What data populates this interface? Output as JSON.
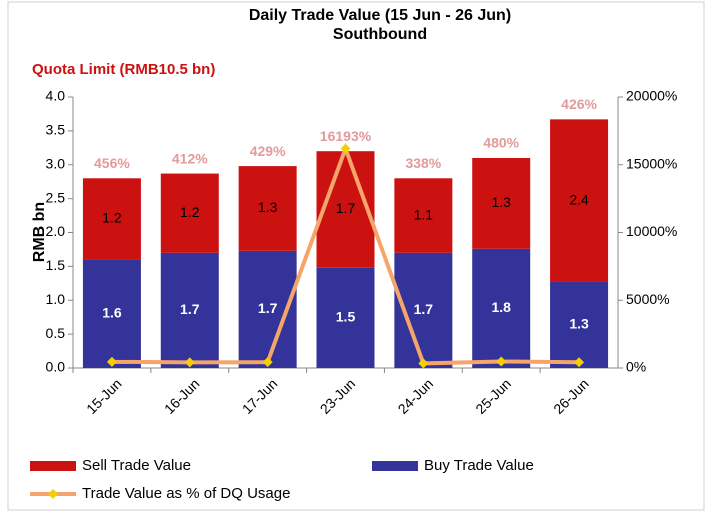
{
  "chart_data": {
    "type": "stacked-bar-line",
    "title": "Daily Trade Value (15 Jun - 26 Jun)",
    "subtitle": "Southbound",
    "annotation": "Quota Limit (RMB10.5 bn)",
    "y_label": "RMB bn",
    "categories": [
      "15-Jun",
      "16-Jun",
      "17-Jun",
      "23-Jun",
      "24-Jun",
      "25-Jun",
      "26-Jun"
    ],
    "series": [
      {
        "name": "Buy Trade Value",
        "color": "#333399",
        "values": [
          1.6,
          1.7,
          1.73,
          1.48,
          1.7,
          1.76,
          1.27
        ],
        "value_labels": [
          "1.6",
          "1.7",
          "1.7",
          "1.5",
          "1.7",
          "1.8",
          "1.3"
        ]
      },
      {
        "name": "Sell Trade Value",
        "color": "#cc1111",
        "values": [
          1.2,
          1.17,
          1.25,
          1.72,
          1.1,
          1.34,
          2.4
        ],
        "value_labels": [
          "1.2",
          "1.2",
          "1.3",
          "1.7",
          "1.1",
          "1.3",
          "2.4"
        ]
      },
      {
        "name": "Trade Value as % of DQ Usage",
        "color": "#f5a56a",
        "marker_color": "#f5d000",
        "axis": "y2",
        "values": [
          456,
          412,
          429,
          16193,
          338,
          480,
          426
        ],
        "value_labels": [
          "456%",
          "412%",
          "429%",
          "16193%",
          "338%",
          "480%",
          "426%"
        ]
      }
    ],
    "ylim": [
      0,
      4
    ],
    "yticks": [
      {
        "value": 0,
        "label": "0.0"
      },
      {
        "value": 0.5,
        "label": "0.5"
      },
      {
        "value": 1,
        "label": "1.0"
      },
      {
        "value": 1.5,
        "label": "1.5"
      },
      {
        "value": 2,
        "label": "2.0"
      },
      {
        "value": 2.5,
        "label": "2.5"
      },
      {
        "value": 3,
        "label": "3.0"
      },
      {
        "value": 3.5,
        "label": "3.5"
      },
      {
        "value": 4,
        "label": "4.0"
      }
    ],
    "y2lim": [
      0,
      20000
    ],
    "y2ticks": [
      {
        "value": 0,
        "label": "0%"
      },
      {
        "value": 5000,
        "label": "5000%"
      },
      {
        "value": 10000,
        "label": "10000%"
      },
      {
        "value": 15000,
        "label": "15000%"
      },
      {
        "value": 20000,
        "label": "20000%"
      }
    ],
    "grid": false
  }
}
